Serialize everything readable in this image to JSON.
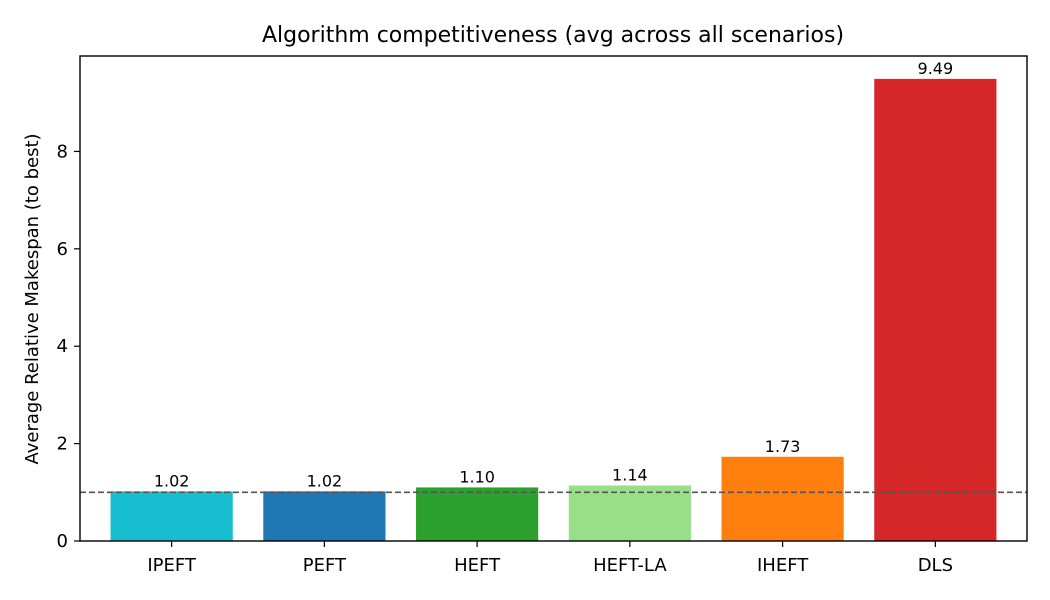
{
  "chart_data": {
    "type": "bar",
    "title": "Algorithm competitiveness (avg across all scenarios)",
    "xlabel": "",
    "ylabel": "Average Relative Makespan (to best)",
    "categories": [
      "IPEFT",
      "PEFT",
      "HEFT",
      "HEFT-LA",
      "IHEFT",
      "DLS"
    ],
    "values": [
      1.02,
      1.02,
      1.1,
      1.14,
      1.73,
      9.49
    ],
    "value_labels": [
      "1.02",
      "1.02",
      "1.10",
      "1.14",
      "1.73",
      "9.49"
    ],
    "colors": [
      "#17becf",
      "#1f77b4",
      "#2ca02c",
      "#98df8a",
      "#ff7f0e",
      "#d62728"
    ],
    "ylim": [
      0,
      9.96
    ],
    "yticks": [
      0,
      2,
      4,
      6,
      8
    ],
    "ytick_labels": [
      "0",
      "2",
      "4",
      "6",
      "8"
    ],
    "reference_line": {
      "y": 1.0,
      "style": "dashed",
      "color": "#555555"
    },
    "grid": false,
    "legend": false
  }
}
